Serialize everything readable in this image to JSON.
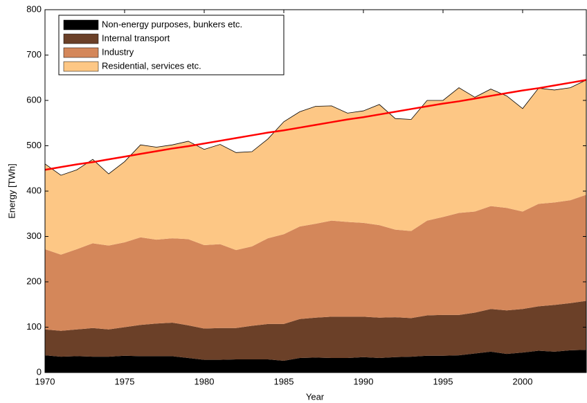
{
  "chart_data": {
    "type": "stacked_area",
    "xlabel": "Year",
    "ylabel": "Energy [TWh]",
    "x": [
      1970,
      1971,
      1972,
      1973,
      1974,
      1975,
      1976,
      1977,
      1978,
      1979,
      1980,
      1981,
      1982,
      1983,
      1984,
      1985,
      1986,
      1987,
      1988,
      1989,
      1990,
      1991,
      1992,
      1993,
      1994,
      1995,
      1996,
      1997,
      1998,
      1999,
      2000,
      2001,
      2002,
      2003,
      2004
    ],
    "series": [
      {
        "name": "Non-energy purposes, bunkers etc.",
        "color": "#000000",
        "values": [
          38,
          35,
          36,
          35,
          35,
          37,
          36,
          36,
          36,
          32,
          28,
          28,
          29,
          29,
          29,
          26,
          32,
          33,
          32,
          32,
          34,
          32,
          34,
          35,
          37,
          37,
          38,
          42,
          46,
          41,
          44,
          48,
          46,
          49,
          50
        ]
      },
      {
        "name": "Internal transport",
        "color": "#6b4028",
        "values": [
          57,
          57,
          59,
          63,
          60,
          63,
          69,
          72,
          74,
          72,
          69,
          70,
          69,
          74,
          78,
          81,
          86,
          88,
          91,
          91,
          89,
          89,
          88,
          85,
          89,
          90,
          89,
          90,
          94,
          96,
          96,
          98,
          103,
          104,
          108
        ]
      },
      {
        "name": "Industry",
        "color": "#d4875a",
        "values": [
          177,
          168,
          177,
          187,
          185,
          187,
          193,
          185,
          186,
          190,
          184,
          185,
          172,
          175,
          189,
          198,
          204,
          207,
          212,
          209,
          207,
          204,
          193,
          192,
          209,
          216,
          225,
          223,
          227,
          226,
          215,
          226,
          226,
          227,
          234
        ]
      },
      {
        "name": "Residential, services etc.",
        "color": "#fdc785",
        "values": [
          188,
          175,
          175,
          185,
          158,
          178,
          204,
          204,
          206,
          216,
          211,
          220,
          215,
          209,
          219,
          248,
          253,
          259,
          253,
          240,
          247,
          266,
          245,
          246,
          265,
          257,
          276,
          252,
          258,
          247,
          227,
          255,
          248,
          248,
          253
        ]
      }
    ],
    "trend": {
      "color": "#ff0000",
      "values": [
        447,
        453,
        459,
        464,
        470,
        476,
        482,
        488,
        494,
        499,
        505,
        511,
        517,
        523,
        529,
        534,
        540,
        546,
        552,
        558,
        563,
        569,
        575,
        581,
        587,
        593,
        598,
        604,
        610,
        616,
        622,
        627,
        633,
        639,
        645
      ]
    },
    "xlim": [
      1970,
      2004
    ],
    "xticks": [
      1970,
      1975,
      1980,
      1985,
      1990,
      1995,
      2000
    ],
    "ylim": [
      0,
      800
    ],
    "yticks": [
      0,
      100,
      200,
      300,
      400,
      500,
      600,
      700,
      800
    ],
    "legend": "upper left"
  }
}
